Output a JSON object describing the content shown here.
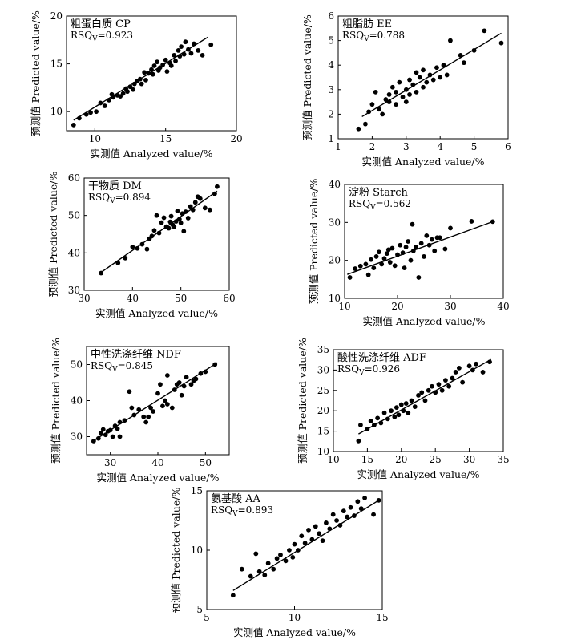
{
  "chart_data": [
    {
      "type": "scatter",
      "title": "粗蛋白质 CP",
      "rsq": {
        "prefix": "RSQ",
        "sub": "V",
        "value": "=0.923"
      },
      "xlabel": "实测值 Analyzed value/%",
      "ylabel": "预测值 Predicted value/%",
      "xlim": [
        8,
        20
      ],
      "ylim": [
        8,
        20
      ],
      "xticks": [
        10,
        15,
        20
      ],
      "yticks": [
        10,
        15,
        20
      ],
      "fit": [
        [
          8.5,
          9.1
        ],
        [
          18,
          17.8
        ]
      ],
      "points": [
        [
          8.5,
          8.6
        ],
        [
          8.9,
          9.3
        ],
        [
          9.4,
          9.7
        ],
        [
          9.7,
          9.9
        ],
        [
          10.1,
          10.0
        ],
        [
          10.4,
          10.9
        ],
        [
          10.7,
          10.6
        ],
        [
          11.0,
          11.2
        ],
        [
          11.2,
          11.8
        ],
        [
          11.3,
          11.5
        ],
        [
          11.6,
          11.7
        ],
        [
          11.8,
          11.6
        ],
        [
          12.0,
          11.9
        ],
        [
          12.2,
          12.4
        ],
        [
          12.3,
          12.1
        ],
        [
          12.5,
          12.6
        ],
        [
          12.7,
          12.3
        ],
        [
          12.8,
          12.9
        ],
        [
          13.0,
          13.2
        ],
        [
          13.2,
          13.4
        ],
        [
          13.3,
          12.9
        ],
        [
          13.5,
          14.1
        ],
        [
          13.6,
          13.3
        ],
        [
          13.8,
          14.0
        ],
        [
          14.0,
          14.4
        ],
        [
          14.1,
          13.9
        ],
        [
          14.2,
          14.8
        ],
        [
          14.4,
          15.2
        ],
        [
          14.5,
          14.3
        ],
        [
          14.6,
          14.6
        ],
        [
          14.8,
          14.9
        ],
        [
          15.0,
          15.4
        ],
        [
          15.1,
          14.2
        ],
        [
          15.3,
          15.1
        ],
        [
          15.4,
          14.8
        ],
        [
          15.6,
          15.9
        ],
        [
          15.7,
          15.3
        ],
        [
          15.9,
          16.4
        ],
        [
          16.0,
          15.8
        ],
        [
          16.1,
          16.8
        ],
        [
          16.3,
          16.0
        ],
        [
          16.4,
          17.3
        ],
        [
          16.6,
          16.5
        ],
        [
          16.8,
          16.1
        ],
        [
          17.0,
          17.1
        ],
        [
          17.3,
          16.4
        ],
        [
          17.6,
          15.9
        ],
        [
          18.2,
          17.0
        ]
      ]
    },
    {
      "type": "scatter",
      "title": "粗脂肪 EE",
      "rsq": {
        "prefix": "RSQ",
        "sub": "V",
        "value": "=0.788"
      },
      "xlabel": "实测值 Analyzed value/%",
      "ylabel": "预测值 Predicted value/%",
      "xlim": [
        1,
        6
      ],
      "ylim": [
        1,
        6
      ],
      "xticks": [
        1,
        2,
        3,
        4,
        5,
        6
      ],
      "yticks": [
        1,
        2,
        3,
        4,
        5,
        6
      ],
      "fit": [
        [
          1.7,
          1.9
        ],
        [
          5.8,
          5.3
        ]
      ],
      "points": [
        [
          1.6,
          1.4
        ],
        [
          1.8,
          1.6
        ],
        [
          1.9,
          2.1
        ],
        [
          2.0,
          2.4
        ],
        [
          2.1,
          2.9
        ],
        [
          2.2,
          2.2
        ],
        [
          2.3,
          2.0
        ],
        [
          2.4,
          2.6
        ],
        [
          2.5,
          2.5
        ],
        [
          2.5,
          2.8
        ],
        [
          2.6,
          3.1
        ],
        [
          2.7,
          2.4
        ],
        [
          2.7,
          2.9
        ],
        [
          2.8,
          3.3
        ],
        [
          2.9,
          2.7
        ],
        [
          3.0,
          3.0
        ],
        [
          3.0,
          2.5
        ],
        [
          3.1,
          3.4
        ],
        [
          3.1,
          2.8
        ],
        [
          3.2,
          3.2
        ],
        [
          3.3,
          3.7
        ],
        [
          3.3,
          2.9
        ],
        [
          3.4,
          3.5
        ],
        [
          3.5,
          3.1
        ],
        [
          3.5,
          3.8
        ],
        [
          3.6,
          3.3
        ],
        [
          3.7,
          3.6
        ],
        [
          3.8,
          3.4
        ],
        [
          3.9,
          3.9
        ],
        [
          4.0,
          3.5
        ],
        [
          4.1,
          4.0
        ],
        [
          4.2,
          3.6
        ],
        [
          4.3,
          5.0
        ],
        [
          4.6,
          4.4
        ],
        [
          4.7,
          4.1
        ],
        [
          5.0,
          4.6
        ],
        [
          5.3,
          5.4
        ],
        [
          5.8,
          4.9
        ]
      ]
    },
    {
      "type": "scatter",
      "title": "干物质 DM",
      "rsq": {
        "prefix": "RSQ",
        "sub": "V",
        "value": "=0.894"
      },
      "xlabel": "实测值 Analyzed value/%",
      "ylabel": "预测值 Predicted value/%",
      "xlim": [
        30,
        60
      ],
      "ylim": [
        30,
        60
      ],
      "xticks": [
        30,
        40,
        50,
        60
      ],
      "yticks": [
        30,
        40,
        50,
        60
      ],
      "fit": [
        [
          33.5,
          34.8
        ],
        [
          57.5,
          56.5
        ]
      ],
      "points": [
        [
          33.5,
          34.6
        ],
        [
          37,
          37.3
        ],
        [
          38.5,
          38.6
        ],
        [
          40,
          41.6
        ],
        [
          41,
          41.2
        ],
        [
          42,
          42.3
        ],
        [
          43,
          41.0
        ],
        [
          43.5,
          43.8
        ],
        [
          44,
          44.5
        ],
        [
          44.5,
          46.0
        ],
        [
          45,
          50.0
        ],
        [
          45.5,
          45.3
        ],
        [
          46,
          48.1
        ],
        [
          46.5,
          49.4
        ],
        [
          47,
          47.0
        ],
        [
          47.5,
          46.6
        ],
        [
          47.8,
          48.3
        ],
        [
          48,
          49.8
        ],
        [
          48.3,
          47.5
        ],
        [
          48.6,
          47.0
        ],
        [
          49,
          48.4
        ],
        [
          49.3,
          51.2
        ],
        [
          49.7,
          49.0
        ],
        [
          50,
          48.0
        ],
        [
          50.3,
          50.5
        ],
        [
          50.6,
          45.8
        ],
        [
          51,
          51.0
        ],
        [
          51.5,
          49.3
        ],
        [
          52,
          52.4
        ],
        [
          52.5,
          51.5
        ],
        [
          53,
          53.5
        ],
        [
          53.5,
          55.0
        ],
        [
          54,
          54.5
        ],
        [
          55,
          52.0
        ],
        [
          56,
          51.5
        ],
        [
          57,
          55.8
        ],
        [
          57.5,
          57.7
        ]
      ]
    },
    {
      "type": "scatter",
      "title": "淀粉 Starch",
      "rsq": {
        "prefix": "RSQ",
        "sub": "V",
        "value": "=0.562"
      },
      "xlabel": "实测值 Analyzed value/%",
      "ylabel": "预测值 Predicted value/%",
      "xlim": [
        10,
        40
      ],
      "ylim": [
        10,
        40
      ],
      "xticks": [
        10,
        20,
        30,
        40
      ],
      "yticks": [
        10,
        20,
        30,
        40
      ],
      "fit": [
        [
          10.5,
          16.3
        ],
        [
          38,
          30.2
        ]
      ],
      "points": [
        [
          11,
          15.5
        ],
        [
          12,
          17.8
        ],
        [
          13,
          18.5
        ],
        [
          14,
          19.0
        ],
        [
          14.5,
          16.2
        ],
        [
          15,
          20.2
        ],
        [
          15.5,
          18.0
        ],
        [
          16,
          21.0
        ],
        [
          16.5,
          22.2
        ],
        [
          17,
          19.0
        ],
        [
          17.5,
          20.5
        ],
        [
          18,
          21.8
        ],
        [
          18.3,
          22.8
        ],
        [
          18.6,
          19.5
        ],
        [
          19,
          23.2
        ],
        [
          19.5,
          18.6
        ],
        [
          20,
          21.5
        ],
        [
          20.5,
          24.0
        ],
        [
          21,
          22.0
        ],
        [
          21.3,
          18.0
        ],
        [
          21.6,
          23.5
        ],
        [
          22,
          25.0
        ],
        [
          22.5,
          20.0
        ],
        [
          22.8,
          29.5
        ],
        [
          23,
          22.5
        ],
        [
          23.5,
          23.5
        ],
        [
          24,
          15.5
        ],
        [
          24.5,
          24.5
        ],
        [
          25,
          21.0
        ],
        [
          25.5,
          26.5
        ],
        [
          26,
          24.0
        ],
        [
          26.5,
          25.5
        ],
        [
          27,
          22.5
        ],
        [
          27.5,
          26.0
        ],
        [
          28,
          26.0
        ],
        [
          29,
          23.0
        ],
        [
          30,
          28.5
        ],
        [
          34,
          30.3
        ],
        [
          38,
          30.2
        ]
      ]
    },
    {
      "type": "scatter",
      "title": "中性洗涤纤维 NDF",
      "rsq": {
        "prefix": "RSQ",
        "sub": "V",
        "value": "=0.845"
      },
      "xlabel": "实测值 Analyzed value/%",
      "ylabel": "预测值 Predicted value/%",
      "xlim": [
        25,
        55
      ],
      "ylim": [
        25,
        55
      ],
      "xticks": [
        30,
        40,
        50
      ],
      "yticks": [
        30,
        40,
        50
      ],
      "fit": [
        [
          26,
          28.5
        ],
        [
          52.5,
          50.5
        ]
      ],
      "points": [
        [
          26.5,
          28.8
        ],
        [
          27.5,
          29.5
        ],
        [
          28,
          31.0
        ],
        [
          28.5,
          32.0
        ],
        [
          29,
          30.5
        ],
        [
          29.5,
          31.5
        ],
        [
          30,
          31.8
        ],
        [
          30.5,
          30.0
        ],
        [
          31,
          33.0
        ],
        [
          31.5,
          32.2
        ],
        [
          32,
          30.0
        ],
        [
          32,
          34.0
        ],
        [
          33,
          34.5
        ],
        [
          34,
          42.5
        ],
        [
          34.5,
          38.0
        ],
        [
          35,
          36.0
        ],
        [
          36,
          37.5
        ],
        [
          37,
          35.5
        ],
        [
          37.5,
          34.0
        ],
        [
          38,
          35.5
        ],
        [
          38.5,
          38.0
        ],
        [
          39,
          37.0
        ],
        [
          40,
          42.0
        ],
        [
          40.5,
          44.5
        ],
        [
          41,
          38.5
        ],
        [
          41.5,
          40.0
        ],
        [
          42,
          39.0
        ],
        [
          42,
          47.0
        ],
        [
          43,
          38.0
        ],
        [
          43.5,
          43.0
        ],
        [
          44,
          44.5
        ],
        [
          44.5,
          45.0
        ],
        [
          45,
          41.5
        ],
        [
          45.5,
          44.0
        ],
        [
          46,
          46.5
        ],
        [
          47,
          44.5
        ],
        [
          47.5,
          45.5
        ],
        [
          48,
          46.0
        ],
        [
          49,
          47.5
        ],
        [
          50,
          48.0
        ],
        [
          52,
          50.0
        ]
      ]
    },
    {
      "type": "scatter",
      "title": "酸性洗涤纤维 ADF",
      "rsq": {
        "prefix": "RSQ",
        "sub": "V",
        "value": "=0.926"
      },
      "xlabel": "实测值 Analyzed value/%",
      "ylabel": "预测值 Predicted value/%",
      "xlim": [
        10,
        35
      ],
      "ylim": [
        10,
        35
      ],
      "xticks": [
        10,
        15,
        20,
        25,
        30,
        35
      ],
      "yticks": [
        10,
        15,
        20,
        25,
        30,
        35
      ],
      "fit": [
        [
          13.7,
          14.3
        ],
        [
          33.2,
          32.6
        ]
      ],
      "points": [
        [
          13.7,
          12.6
        ],
        [
          14,
          16.5
        ],
        [
          15,
          15.5
        ],
        [
          15.5,
          17.5
        ],
        [
          16,
          16.5
        ],
        [
          16.5,
          18.2
        ],
        [
          17,
          17.0
        ],
        [
          17.5,
          19.5
        ],
        [
          18,
          18.0
        ],
        [
          18.5,
          20.0
        ],
        [
          19,
          18.5
        ],
        [
          19.3,
          20.8
        ],
        [
          19.6,
          19.0
        ],
        [
          20,
          21.5
        ],
        [
          20.3,
          20.0
        ],
        [
          20.7,
          21.8
        ],
        [
          21,
          19.5
        ],
        [
          21.5,
          22.5
        ],
        [
          22,
          21.0
        ],
        [
          22.5,
          23.8
        ],
        [
          23,
          24.5
        ],
        [
          23.5,
          22.5
        ],
        [
          24,
          25.0
        ],
        [
          24.5,
          26.0
        ],
        [
          25,
          24.5
        ],
        [
          25.5,
          26.5
        ],
        [
          26,
          25.0
        ],
        [
          26.5,
          27.5
        ],
        [
          27,
          26.0
        ],
        [
          27.5,
          28.0
        ],
        [
          28,
          29.5
        ],
        [
          28.5,
          30.5
        ],
        [
          29,
          27.0
        ],
        [
          30,
          31.0
        ],
        [
          30.5,
          30.0
        ],
        [
          31,
          31.5
        ],
        [
          32,
          29.5
        ],
        [
          33,
          32.0
        ]
      ]
    },
    {
      "type": "scatter",
      "title": "氨基酸 AA",
      "rsq": {
        "prefix": "RSQ",
        "sub": "V",
        "value": "=0.893"
      },
      "xlabel": "实测值 Analyzed value/%",
      "ylabel": "预测值 Predicted value/%",
      "xlim": [
        5,
        15
      ],
      "ylim": [
        5,
        15
      ],
      "xticks": [
        5,
        10,
        15
      ],
      "yticks": [
        5,
        10,
        15
      ],
      "fit": [
        [
          6.5,
          6.6
        ],
        [
          14.8,
          14.2
        ]
      ],
      "points": [
        [
          6.5,
          6.2
        ],
        [
          7,
          8.4
        ],
        [
          7.5,
          7.8
        ],
        [
          7.8,
          9.7
        ],
        [
          8,
          8.2
        ],
        [
          8.3,
          7.9
        ],
        [
          8.5,
          8.9
        ],
        [
          8.8,
          8.4
        ],
        [
          9,
          9.3
        ],
        [
          9.2,
          9.6
        ],
        [
          9.5,
          9.1
        ],
        [
          9.7,
          10.0
        ],
        [
          9.9,
          9.4
        ],
        [
          10,
          10.5
        ],
        [
          10.2,
          10.0
        ],
        [
          10.4,
          11.2
        ],
        [
          10.6,
          10.6
        ],
        [
          10.8,
          11.7
        ],
        [
          11,
          10.9
        ],
        [
          11.2,
          12.0
        ],
        [
          11.4,
          11.4
        ],
        [
          11.6,
          10.8
        ],
        [
          11.8,
          12.3
        ],
        [
          12,
          11.8
        ],
        [
          12.2,
          13.0
        ],
        [
          12.4,
          12.5
        ],
        [
          12.6,
          12.1
        ],
        [
          12.8,
          13.3
        ],
        [
          13,
          12.8
        ],
        [
          13.2,
          13.6
        ],
        [
          13.4,
          12.9
        ],
        [
          13.6,
          14.1
        ],
        [
          13.8,
          13.5
        ],
        [
          14,
          14.4
        ],
        [
          14.5,
          13.0
        ],
        [
          14.8,
          14.2
        ]
      ]
    }
  ]
}
